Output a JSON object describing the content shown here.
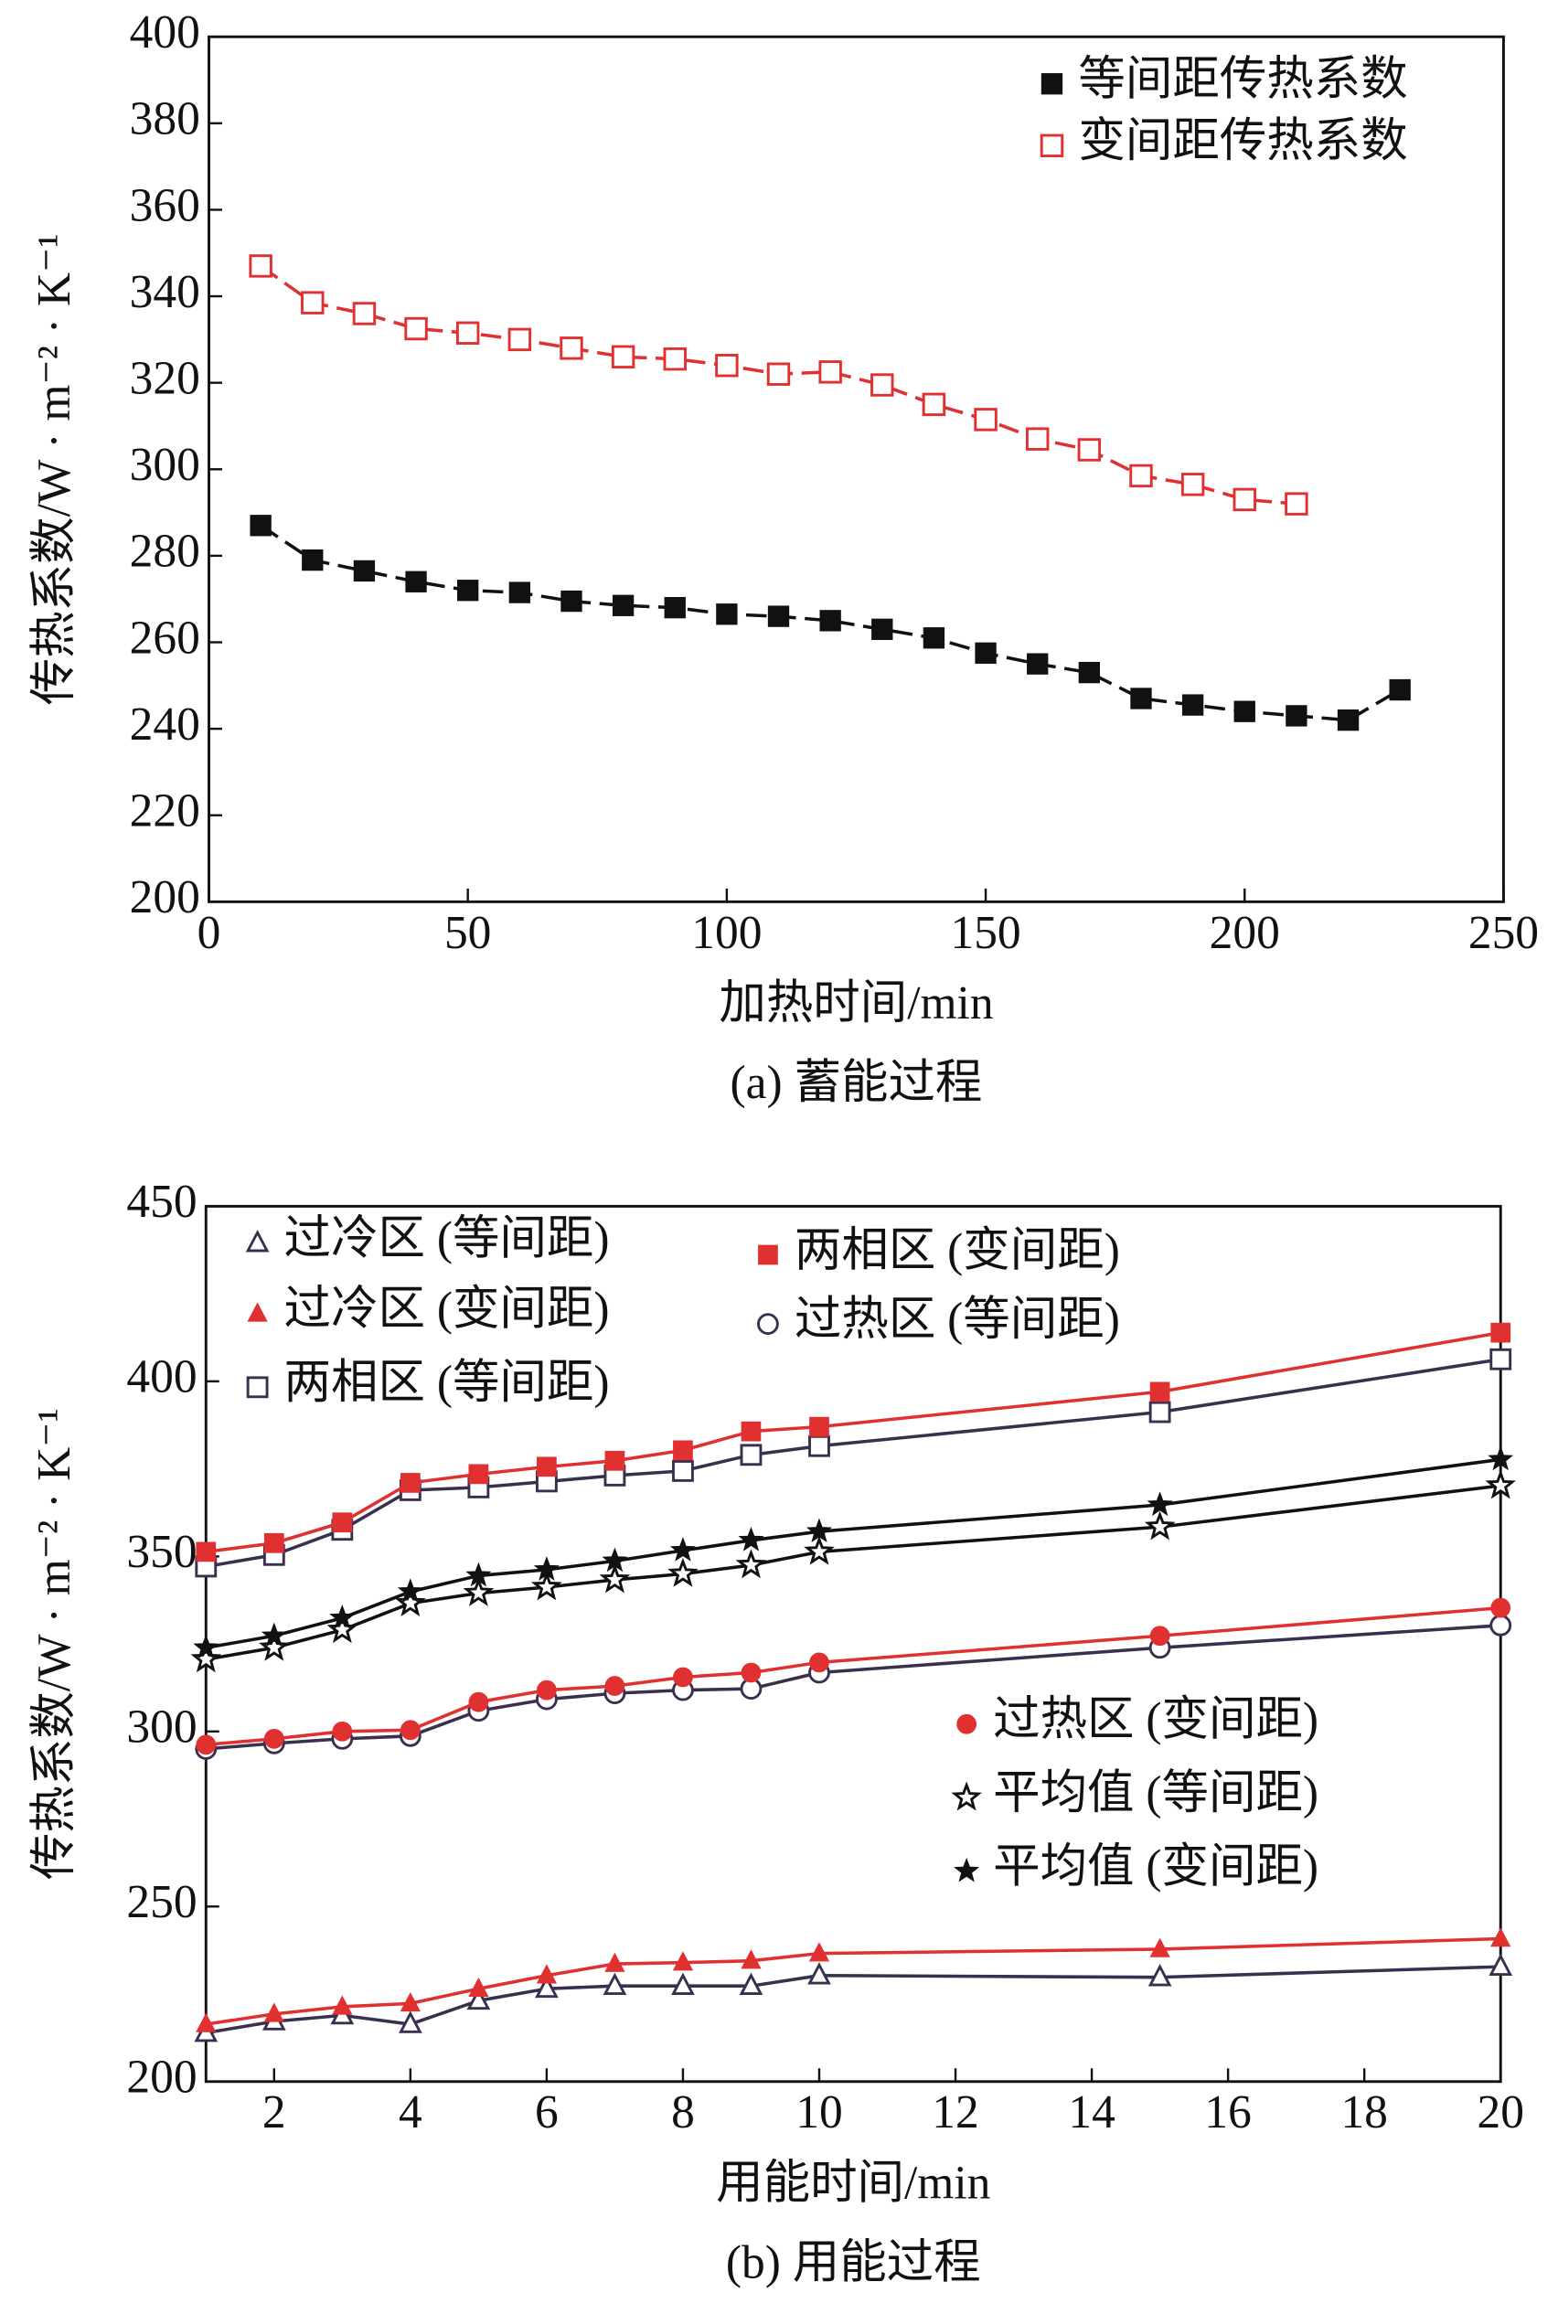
{
  "chart_data": [
    {
      "type": "line",
      "caption": "(a) 蓄能过程",
      "xlabel": "加热时间/min",
      "ylabel": "传热系数/W · m⁻² · K⁻¹",
      "xlim": [
        0,
        250
      ],
      "xticks": [
        0,
        50,
        100,
        150,
        200,
        250
      ],
      "ylim": [
        200,
        400
      ],
      "yticks": [
        200,
        220,
        240,
        260,
        280,
        300,
        320,
        340,
        360,
        380,
        400
      ],
      "line_dash": true,
      "series": [
        {
          "name": "等间距传热系数",
          "color": "#111111",
          "line_color": "#111111",
          "marker": "square",
          "x": [
            10,
            20,
            30,
            40,
            50,
            60,
            70,
            80,
            90,
            100,
            110,
            120,
            130,
            140,
            150,
            160,
            170,
            180,
            190,
            200,
            210,
            220,
            230
          ],
          "values": [
            287,
            279,
            276.5,
            274,
            272,
            271.5,
            269.5,
            268.5,
            268,
            266.5,
            266,
            265,
            263,
            261,
            257.5,
            255,
            253,
            247,
            245.5,
            244,
            243,
            242,
            249
          ]
        },
        {
          "name": "变间距传热系数",
          "color": "#e03030",
          "line_color": "#e03030",
          "marker": "square-open",
          "x": [
            10,
            20,
            30,
            40,
            50,
            60,
            70,
            80,
            90,
            100,
            110,
            120,
            130,
            140,
            150,
            160,
            170,
            180,
            190,
            200,
            210
          ],
          "values": [
            347,
            338.5,
            336,
            332.5,
            331.5,
            330,
            328,
            326,
            325.5,
            324,
            322,
            322.5,
            319.5,
            315,
            311.5,
            307,
            304.5,
            298.5,
            296.5,
            293,
            292
          ]
        }
      ]
    },
    {
      "type": "line",
      "caption": "(b) 用能过程",
      "xlabel": "用能时间/min",
      "ylabel": "传热系数/W · m⁻² · K⁻¹",
      "xlim": [
        1,
        20
      ],
      "xticks": [
        2,
        4,
        6,
        8,
        10,
        12,
        14,
        16,
        18,
        20
      ],
      "ylim": [
        200,
        450
      ],
      "yticks": [
        200,
        250,
        300,
        350,
        400,
        450
      ],
      "line_dash": false,
      "series": [
        {
          "name": "过冷区 (等间距)",
          "color": "#3a2f4f",
          "line_color": "#3a2f4f",
          "marker": "triangle-open",
          "x": [
            1,
            2,
            3,
            4,
            5,
            6,
            7,
            8,
            9,
            10,
            15,
            20
          ],
          "values": [
            213.9,
            217.2,
            218.9,
            216.4,
            223.1,
            226.5,
            227.3,
            227.3,
            227.3,
            230.3,
            229.8,
            232.8
          ]
        },
        {
          "name": "过冷区 (变间距)",
          "color": "#e03030",
          "line_color": "#e03030",
          "marker": "triangle",
          "x": [
            1,
            2,
            3,
            4,
            5,
            6,
            7,
            8,
            9,
            10,
            15,
            20
          ],
          "values": [
            216.4,
            219.3,
            221.4,
            222.3,
            226.5,
            230.3,
            233.6,
            234,
            234.5,
            236.6,
            237.8,
            240.8
          ]
        },
        {
          "name": "两相区 (等间距)",
          "color": "#3a2f4f",
          "line_color": "#3a2f4f",
          "marker": "square-open",
          "x": [
            1,
            2,
            3,
            4,
            5,
            6,
            7,
            8,
            9,
            10,
            15,
            20
          ],
          "values": [
            347.1,
            350.4,
            357.6,
            368.9,
            369.7,
            371.4,
            373.1,
            374.4,
            379,
            381.5,
            391.2,
            406.3
          ]
        },
        {
          "name": "两相区 (变间距)",
          "color": "#e03030",
          "line_color": "#e03030",
          "marker": "square",
          "x": [
            1,
            2,
            3,
            4,
            5,
            6,
            7,
            8,
            9,
            10,
            15,
            20
          ],
          "values": [
            351.3,
            353.8,
            359.7,
            371,
            373.5,
            375.6,
            377.3,
            380.3,
            385.7,
            387,
            397,
            413.9
          ]
        },
        {
          "name": "过热区 (等间距)",
          "color": "#3a2f4f",
          "line_color": "#3a2f4f",
          "marker": "circle-open",
          "x": [
            1,
            2,
            3,
            4,
            5,
            6,
            7,
            8,
            9,
            10,
            15,
            20
          ],
          "values": [
            295,
            296.6,
            297.9,
            298.7,
            305.9,
            309.2,
            310.9,
            311.8,
            312.2,
            316.8,
            323.9,
            330.3
          ]
        },
        {
          "name": "过热区 (变间距)",
          "color": "#e03030",
          "line_color": "#e03030",
          "marker": "circle",
          "x": [
            1,
            2,
            3,
            4,
            5,
            6,
            7,
            8,
            9,
            10,
            15,
            20
          ],
          "values": [
            296.2,
            297.9,
            300,
            300.4,
            308.4,
            311.8,
            313,
            315.5,
            316.8,
            319.7,
            327.3,
            335.3
          ]
        },
        {
          "name": "平均值 (等间距)",
          "color": "#111111",
          "line_color": "#111111",
          "marker": "star-open",
          "x": [
            1,
            2,
            3,
            4,
            5,
            6,
            7,
            8,
            9,
            10,
            15,
            20
          ],
          "values": [
            320.6,
            323.9,
            329,
            336.6,
            339.5,
            341.2,
            343.3,
            345,
            347.5,
            351.3,
            358.4,
            370.2
          ]
        },
        {
          "name": "平均值 (变间距)",
          "color": "#111111",
          "line_color": "#111111",
          "marker": "star",
          "x": [
            1,
            2,
            3,
            4,
            5,
            6,
            7,
            8,
            9,
            10,
            15,
            20
          ],
          "values": [
            323.9,
            327.3,
            332.4,
            339.9,
            344.5,
            346.2,
            348.7,
            351.7,
            354.6,
            357.1,
            364.7,
            377.7
          ]
        }
      ]
    }
  ]
}
